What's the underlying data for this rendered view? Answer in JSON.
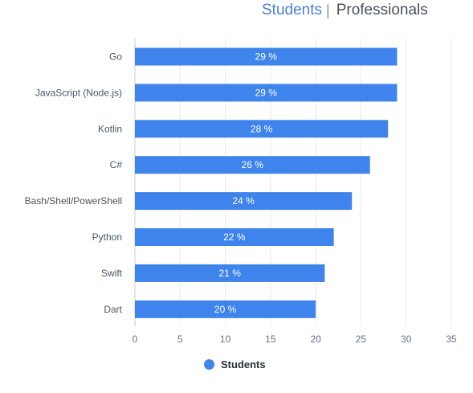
{
  "tabs": {
    "students": "Students",
    "separator": "|",
    "professionals": "Professionals"
  },
  "chart_data": {
    "type": "bar",
    "orientation": "horizontal",
    "categories": [
      "Go",
      "JavaScript (Node.js)",
      "Kotlin",
      "C#",
      "Bash/Shell/PowerShell",
      "Python",
      "Swift",
      "Dart"
    ],
    "series": [
      {
        "name": "Students",
        "values": [
          29,
          29,
          28,
          26,
          24,
          22,
          21,
          20
        ],
        "labels": [
          "29 %",
          "29 %",
          "28 %",
          "26 %",
          "24 %",
          "22 %",
          "21 %",
          "20 %"
        ]
      }
    ],
    "xlim": [
      0,
      35
    ],
    "xticks": [
      0,
      5,
      10,
      15,
      20,
      25,
      30,
      35
    ],
    "grid": true,
    "legend_position": "bottom",
    "color": "#3f84ec"
  }
}
